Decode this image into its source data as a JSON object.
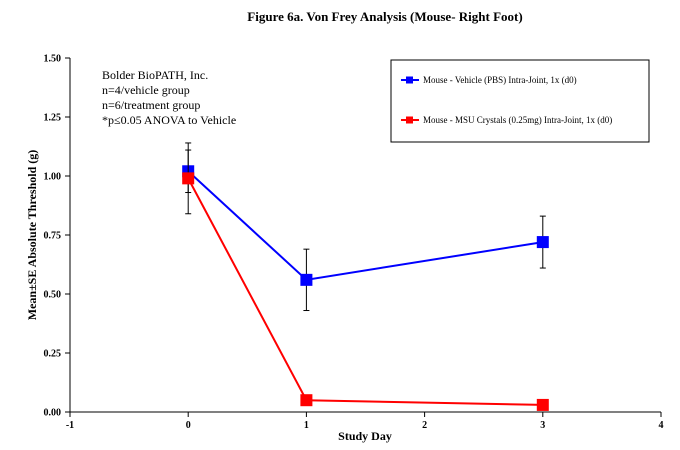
{
  "chart_data": {
    "type": "line",
    "title": "Figure 6a. Von Frey Analysis (Mouse- Right Foot)",
    "xlabel": "Study Day",
    "ylabel": "Mean±SE Absolute Threshold (g)",
    "xlim": [
      -1,
      4
    ],
    "ylim": [
      0,
      1.5
    ],
    "x_ticks": [
      "-1",
      "0",
      "1",
      "2",
      "3",
      "4"
    ],
    "y_ticks": [
      "0.00",
      "0.25",
      "0.50",
      "0.75",
      "1.00",
      "1.25",
      "1.50"
    ],
    "grid": false,
    "legend_position": "top-right",
    "series": [
      {
        "name": "Mouse - Vehicle (PBS) Intra-Joint, 1x (d0)",
        "color": "#0000ff",
        "marker": "square",
        "x": [
          0,
          1,
          3
        ],
        "y": [
          1.02,
          0.56,
          0.72
        ],
        "err": [
          0.09,
          0.13,
          0.11
        ]
      },
      {
        "name": "Mouse - MSU Crystals (0.25mg) Intra-Joint, 1x (d0)",
        "color": "#ff0000",
        "marker": "square",
        "x": [
          0,
          1,
          3
        ],
        "y": [
          0.99,
          0.05,
          0.03
        ],
        "err": [
          0.15,
          0.0,
          0.0
        ]
      }
    ],
    "annotations": [
      "Bolder BioPATH, Inc.",
      "n=4/vehicle group",
      "n=6/treatment group",
      "*p≤0.05 ANOVA to Vehicle"
    ]
  }
}
